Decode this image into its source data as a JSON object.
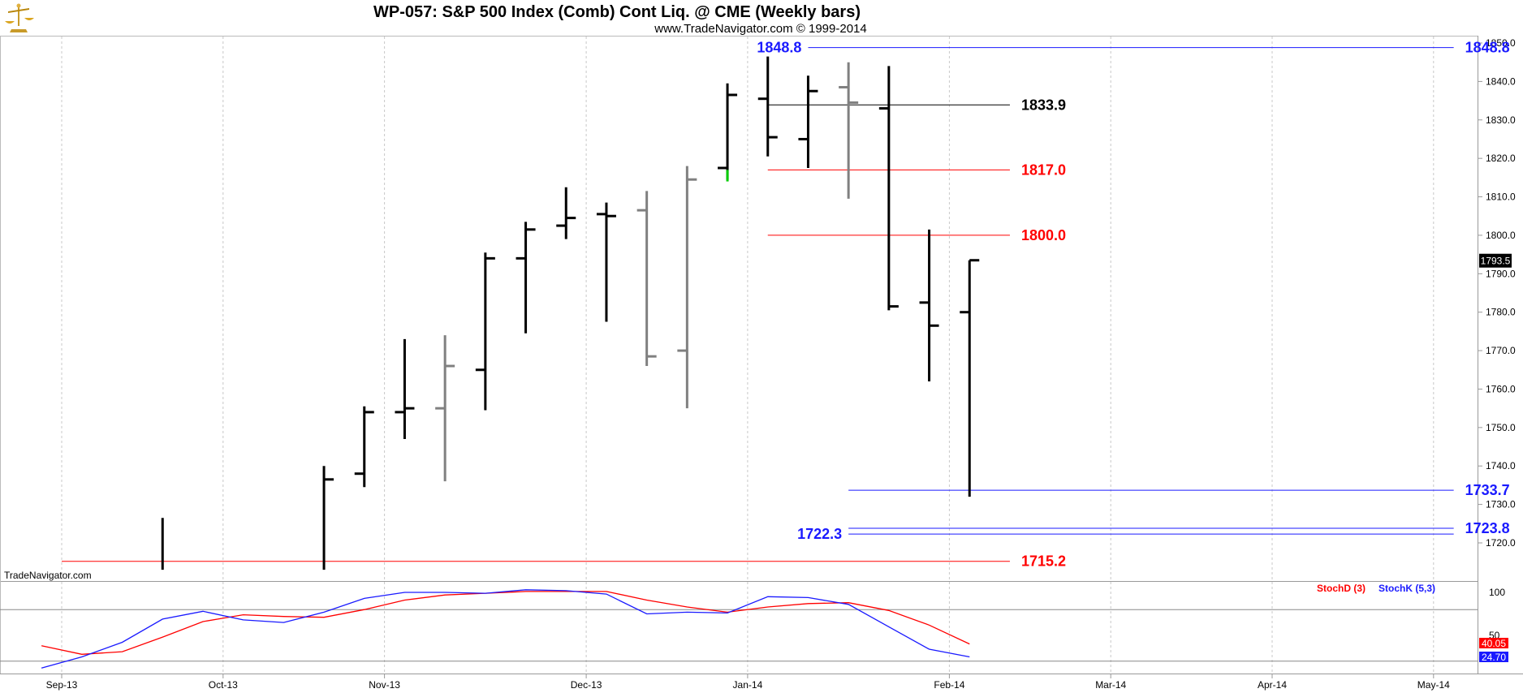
{
  "header": {
    "title": "WP-057:  S&P 500 Index (Comb) Cont Liq. @ CME  (Weekly bars)",
    "subtitle": "www.TradeNavigator.com © 1999-2014",
    "watermark": "TradeNavigator.com",
    "logo_icon": "gold-scale-icon"
  },
  "colors": {
    "bar": "#000000",
    "bar_gray": "#808080",
    "bar_green": "#00cc00",
    "blue": "#1a1aff",
    "red": "#ff0000",
    "black": "#000000",
    "grid": "#c0c0c0",
    "axis": "#999999"
  },
  "chart_data": [
    {
      "type": "ohlc",
      "title": "WP-057:  S&P 500 Index (Comb) Cont Liq. @ CME  (Weekly bars)",
      "ylim": [
        1713,
        1852
      ],
      "y_ticks": [
        "1720.0",
        "1730.0",
        "1740.0",
        "1750.0",
        "1760.0",
        "1770.0",
        "1780.0",
        "1790.0",
        "1800.0",
        "1810.0",
        "1820.0",
        "1830.0",
        "1840.0",
        "1850.0"
      ],
      "x_tick_labels": [
        "Sep-13",
        "Oct-13",
        "Nov-13",
        "Dec-13",
        "Jan-14",
        "Feb-14",
        "Mar-14",
        "Apr-14",
        "May-14"
      ],
      "x_tick_weeks": [
        0,
        4,
        8,
        13,
        17,
        22,
        26,
        30,
        34
      ],
      "last_price": "1793.5",
      "bars": [
        {
          "week": 2.5,
          "high": 1726.5,
          "low": 1713,
          "open": null,
          "close": null,
          "color": "black"
        },
        {
          "week": 6.5,
          "high": 1740,
          "low": 1713,
          "open": null,
          "close": 1736.5,
          "color": "black"
        },
        {
          "week": 7.5,
          "high": 1755.5,
          "low": 1734.5,
          "open": 1738,
          "close": 1754,
          "color": "black"
        },
        {
          "week": 8.5,
          "high": 1773,
          "low": 1747,
          "open": 1754,
          "close": 1755,
          "color": "black"
        },
        {
          "week": 9.5,
          "high": 1774,
          "low": 1736,
          "open": 1755,
          "close": 1766,
          "color": "gray"
        },
        {
          "week": 10.5,
          "high": 1795.5,
          "low": 1754.5,
          "open": 1765,
          "close": 1794,
          "color": "black"
        },
        {
          "week": 11.5,
          "high": 1803.5,
          "low": 1774.5,
          "open": 1794,
          "close": 1801.5,
          "color": "black"
        },
        {
          "week": 12.5,
          "high": 1812.5,
          "low": 1799,
          "open": 1802.5,
          "close": 1804.5,
          "color": "black"
        },
        {
          "week": 13.5,
          "high": 1808.5,
          "low": 1777.5,
          "open": 1805.5,
          "close": 1805,
          "color": "black"
        },
        {
          "week": 14.5,
          "high": 1811.5,
          "low": 1766,
          "open": 1806.5,
          "close": 1768.5,
          "color": "gray"
        },
        {
          "week": 15.5,
          "high": 1818,
          "low": 1755,
          "open": 1770,
          "close": 1814.5,
          "color": "gray"
        },
        {
          "week": 16.5,
          "high": 1839.5,
          "low": 1814.5,
          "open": 1817.5,
          "close": 1836.5,
          "color": "black"
        },
        {
          "week": 17.5,
          "high": 1846.5,
          "low": 1820.5,
          "open": 1835.5,
          "close": 1825.5,
          "color": "black"
        },
        {
          "week": 18.5,
          "high": 1841.5,
          "low": 1817.5,
          "open": 1825,
          "close": 1837.5,
          "color": "black"
        },
        {
          "week": 19.5,
          "high": 1845,
          "low": 1809.5,
          "open": 1838.5,
          "close": 1834.5,
          "color": "gray"
        },
        {
          "week": 20.5,
          "high": 1844,
          "low": 1780.5,
          "open": 1833,
          "close": 1781.5,
          "color": "black"
        },
        {
          "week": 21.5,
          "high": 1801.5,
          "low": 1762,
          "open": 1782.5,
          "close": 1776.5,
          "color": "black"
        },
        {
          "week": 22.5,
          "high": 1793.5,
          "low": 1732,
          "open": 1780,
          "close": 1793.5,
          "color": "black"
        }
      ],
      "levels": [
        {
          "value": 1848.8,
          "label": "1848.8",
          "color": "blue",
          "from_week": 18.5,
          "to_week": 34.5,
          "label_left": "1848.8",
          "label_right": "1848.8"
        },
        {
          "value": 1833.9,
          "label": "1833.9",
          "color": "black",
          "from_week": 17.5,
          "to_week": 23.5,
          "label_right": "1833.9"
        },
        {
          "value": 1817.0,
          "label": "1817.0",
          "color": "red",
          "from_week": 17.5,
          "to_week": 23.5,
          "label_right": "1817.0"
        },
        {
          "value": 1800.0,
          "label": "1800.0",
          "color": "red",
          "from_week": 17.5,
          "to_week": 23.5,
          "label_right": "1800.0"
        },
        {
          "value": 1733.7,
          "label": "1733.7",
          "color": "blue",
          "from_week": 19.5,
          "to_week": 34.5,
          "label_right": "1733.7"
        },
        {
          "value": 1723.8,
          "label": "1723.8",
          "color": "blue",
          "from_week": 19.5,
          "to_week": 34.5,
          "label_right": "1723.8"
        },
        {
          "value": 1722.3,
          "label": "1722.3",
          "color": "blue",
          "from_week": 19.5,
          "to_week": 34.5,
          "label_left": "1722.3"
        },
        {
          "value": 1715.2,
          "label": "1715.2",
          "color": "red",
          "from_week": 0,
          "to_week": 23.5,
          "label_right": "1715.2"
        }
      ]
    },
    {
      "type": "line",
      "ylim": [
        0,
        100
      ],
      "y_ticks": [
        "100",
        "50"
      ],
      "reference_lines": [
        80,
        20
      ],
      "series": [
        {
          "name": "StochD (3)",
          "color": "red",
          "last": "40.05",
          "points": [
            [
              -0.5,
              38
            ],
            [
              0.5,
              28
            ],
            [
              1.5,
              31
            ],
            [
              2.5,
              48
            ],
            [
              3.5,
              66
            ],
            [
              4.5,
              74
            ],
            [
              5.5,
              72
            ],
            [
              6.5,
              71
            ],
            [
              7.5,
              80
            ],
            [
              8.5,
              91
            ],
            [
              9.5,
              97
            ],
            [
              10.5,
              99
            ],
            [
              11.5,
              101
            ],
            [
              12.5,
              101
            ],
            [
              13.5,
              101
            ],
            [
              14.5,
              91
            ],
            [
              15.5,
              83
            ],
            [
              16.5,
              77
            ],
            [
              17.5,
              83
            ],
            [
              18.5,
              87
            ],
            [
              19.5,
              88
            ],
            [
              20.5,
              79
            ],
            [
              21.5,
              62
            ],
            [
              22.5,
              40
            ]
          ]
        },
        {
          "name": "StochK (5,3)",
          "color": "blue",
          "last": "24.70",
          "points": [
            [
              -0.5,
              12
            ],
            [
              0.5,
              25
            ],
            [
              1.5,
              42
            ],
            [
              2.5,
              69
            ],
            [
              3.5,
              78
            ],
            [
              4.5,
              68
            ],
            [
              5.5,
              65
            ],
            [
              6.5,
              77
            ],
            [
              7.5,
              93
            ],
            [
              8.5,
              100
            ],
            [
              9.5,
              100
            ],
            [
              10.5,
              99
            ],
            [
              11.5,
              103
            ],
            [
              12.5,
              102
            ],
            [
              13.5,
              98
            ],
            [
              14.5,
              75
            ],
            [
              15.5,
              77
            ],
            [
              16.5,
              76
            ],
            [
              17.5,
              95
            ],
            [
              18.5,
              94
            ],
            [
              19.5,
              86
            ],
            [
              20.5,
              60
            ],
            [
              21.5,
              34
            ],
            [
              22.5,
              25
            ]
          ]
        }
      ]
    }
  ]
}
